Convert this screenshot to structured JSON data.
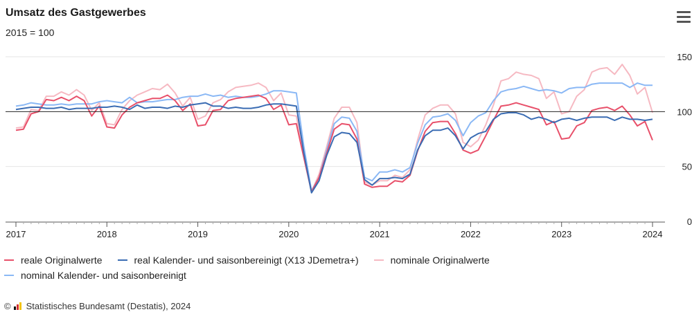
{
  "header": {
    "title": "Umsatz des Gastgewerbes",
    "subtitle": "2015 = 100",
    "menu_icon": "hamburger-menu-icon"
  },
  "footer": {
    "copyright_symbol": "©",
    "logo_icon": "destatis-logo-icon",
    "source": "Statistisches Bundesamt (Destatis), 2024"
  },
  "chart_data": {
    "type": "line",
    "title": "Umsatz des Gastgewerbes",
    "subtitle": "2015 = 100",
    "xlabel": "",
    "ylabel": "",
    "x_ticks": [
      "2017",
      "2018",
      "2019",
      "2020",
      "2021",
      "2022",
      "2023",
      "2024"
    ],
    "y_ticks": [
      0,
      50,
      100,
      150
    ],
    "xlim": [
      "2017-01",
      "2024-01"
    ],
    "ylim": [
      0,
      150
    ],
    "reference_line": 100,
    "grid": "horizontal",
    "legend_position": "bottom",
    "start_month": "2017-01",
    "series": [
      {
        "name": "reale Originalwerte",
        "color": "#e8506a",
        "values": [
          83,
          84,
          98,
          100,
          111,
          110,
          113,
          110,
          114,
          110,
          96,
          105,
          86,
          85,
          97,
          104,
          108,
          110,
          112,
          112,
          115,
          110,
          101,
          107,
          87,
          88,
          101,
          102,
          110,
          112,
          113,
          114,
          115,
          112,
          102,
          106,
          88,
          89,
          58,
          27,
          40,
          62,
          84,
          89,
          88,
          75,
          34,
          31,
          32,
          32,
          37,
          36,
          42,
          64,
          82,
          90,
          91,
          91,
          80,
          65,
          62,
          65,
          78,
          92,
          105,
          106,
          108,
          106,
          104,
          102,
          88,
          91,
          75,
          76,
          87,
          90,
          101,
          103,
          104,
          101,
          105,
          97,
          87,
          91,
          74
        ]
      },
      {
        "name": "real Kalender- und saisonbereinigt (X13 JDemetra+)",
        "color": "#3a6cb3",
        "values": [
          102,
          103,
          104,
          104,
          103,
          103,
          104,
          102,
          103,
          103,
          103,
          104,
          104,
          105,
          104,
          102,
          106,
          103,
          104,
          104,
          103,
          105,
          104,
          106,
          107,
          108,
          105,
          105,
          103,
          104,
          103,
          103,
          104,
          106,
          107,
          107,
          106,
          105,
          62,
          26,
          37,
          60,
          77,
          81,
          80,
          72,
          38,
          33,
          39,
          39,
          40,
          39,
          43,
          65,
          78,
          83,
          83,
          85,
          78,
          66,
          76,
          80,
          82,
          93,
          98,
          99,
          99,
          97,
          93,
          95,
          93,
          90,
          93,
          94,
          92,
          94,
          95,
          95,
          95,
          92,
          95,
          93,
          93,
          92,
          93
        ]
      },
      {
        "name": "nominale Originalwerte",
        "color": "#f6b9c2",
        "values": [
          85,
          86,
          102,
          101,
          114,
          114,
          118,
          115,
          120,
          115,
          101,
          108,
          89,
          88,
          102,
          110,
          115,
          118,
          121,
          120,
          125,
          117,
          105,
          113,
          93,
          96,
          108,
          111,
          118,
          122,
          123,
          124,
          126,
          122,
          110,
          117,
          97,
          96,
          60,
          27,
          43,
          68,
          94,
          104,
          104,
          90,
          36,
          33,
          37,
          37,
          42,
          40,
          47,
          74,
          97,
          103,
          106,
          106,
          98,
          72,
          68,
          74,
          88,
          106,
          128,
          130,
          136,
          134,
          133,
          130,
          112,
          118,
          98,
          100,
          114,
          120,
          136,
          139,
          140,
          134,
          143,
          133,
          116,
          122,
          99
        ]
      },
      {
        "name": "nominal Kalender- und saisonbereinigt",
        "color": "#8ab8f5",
        "values": [
          105,
          106,
          108,
          107,
          106,
          106,
          107,
          106,
          107,
          107,
          107,
          109,
          110,
          109,
          108,
          113,
          108,
          109,
          109,
          110,
          111,
          111,
          113,
          114,
          114,
          116,
          114,
          115,
          113,
          114,
          113,
          113,
          114,
          116,
          119,
          119,
          118,
          117,
          68,
          28,
          40,
          65,
          89,
          95,
          94,
          82,
          40,
          37,
          45,
          45,
          47,
          45,
          49,
          71,
          88,
          95,
          96,
          98,
          92,
          78,
          90,
          96,
          99,
          110,
          118,
          120,
          121,
          123,
          121,
          119,
          120,
          119,
          117,
          121,
          122,
          122,
          125,
          126,
          126,
          126,
          126,
          122,
          126,
          124,
          124
        ]
      }
    ]
  }
}
